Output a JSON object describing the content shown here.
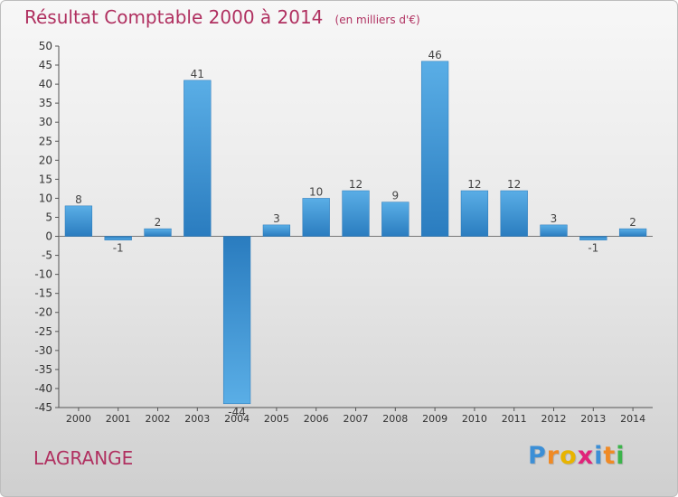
{
  "chart_data": {
    "type": "bar",
    "title": "Résultat Comptable 2000 à 2014",
    "subtitle": "(en milliers d'€)",
    "categories": [
      "2000",
      "2001",
      "2002",
      "2003",
      "2004",
      "2005",
      "2006",
      "2007",
      "2008",
      "2009",
      "2010",
      "2011",
      "2012",
      "2013",
      "2014"
    ],
    "values": [
      8,
      -1,
      2,
      41,
      -44,
      3,
      10,
      12,
      9,
      46,
      12,
      12,
      3,
      -1,
      2
    ],
    "ylim": [
      -45,
      50
    ],
    "yticks": [
      50,
      45,
      40,
      35,
      30,
      25,
      20,
      15,
      10,
      5,
      0,
      -5,
      -10,
      -15,
      -20,
      -25,
      -30,
      -35,
      -40,
      -45
    ],
    "xlabel": "",
    "ylabel": "",
    "grid": false,
    "bar_color_top": "#5aaee6",
    "bar_color_bottom": "#2a7cbf"
  },
  "commune": "LAGRANGE",
  "logo": {
    "text": "Proxiti",
    "letters": [
      "P",
      "r",
      "o",
      "x",
      "i",
      "t",
      "i"
    ],
    "colors": [
      "#3c8fd6",
      "#f08a24",
      "#e8b400",
      "#e0237a",
      "#3c8fd6",
      "#f08a24",
      "#3cb44b"
    ]
  },
  "colors": {
    "title": "#b03060",
    "axis": "#555555"
  }
}
